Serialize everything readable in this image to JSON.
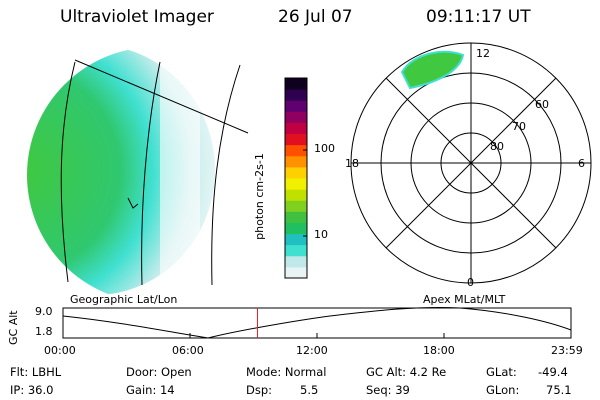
{
  "header": {
    "title": "Ultraviolet Imager",
    "date": "26 Jul 07",
    "time": "09:11:17 UT"
  },
  "colorbar": {
    "unit_label": "photon cm-2s-1",
    "ticks": [
      "100",
      "10"
    ],
    "colors": [
      "#e8f4f4",
      "#bfe8e8",
      "#40e0d0",
      "#20c0c0",
      "#20c060",
      "#40c040",
      "#80d020",
      "#c0e000",
      "#f0f000",
      "#ffd000",
      "#ff9000",
      "#ff5000",
      "#e01020",
      "#c00040",
      "#900060",
      "#600070",
      "#300050",
      "#100020"
    ]
  },
  "geo_map": {
    "label": "Geographic Lat/Lon",
    "aurora_color": "#40c840",
    "edge_color": "#40e0d0"
  },
  "polar_plot": {
    "label": "Apex MLat/MLT",
    "mlt_labels": {
      "top": "12",
      "left": "18",
      "right": "6",
      "bottom": "0"
    },
    "lat_labels": [
      "60",
      "70",
      "80"
    ]
  },
  "timeline": {
    "y_axis_label": "GC Alt",
    "y_max": "9.0",
    "y_min": "1.8",
    "x_ticks": [
      "00:00",
      "06:00",
      "12:00",
      "18:00",
      "23:59"
    ],
    "current_time_fraction": 0.3828,
    "marker_color": "#e02020"
  },
  "info": {
    "filter": "Flt: LBHL",
    "ip": "IP: 36.0",
    "door": "Door: Open",
    "gain": "Gain: 14",
    "mode": "Mode: Normal",
    "dsp_label": "Dsp:",
    "dsp_value": "5.5",
    "gc_alt": "GC Alt: 4.2 Re",
    "seq": "Seq: 39",
    "glat_label": "GLat:",
    "glat_value": "-49.4",
    "glon_label": "GLon:",
    "glon_value": "75.1"
  }
}
